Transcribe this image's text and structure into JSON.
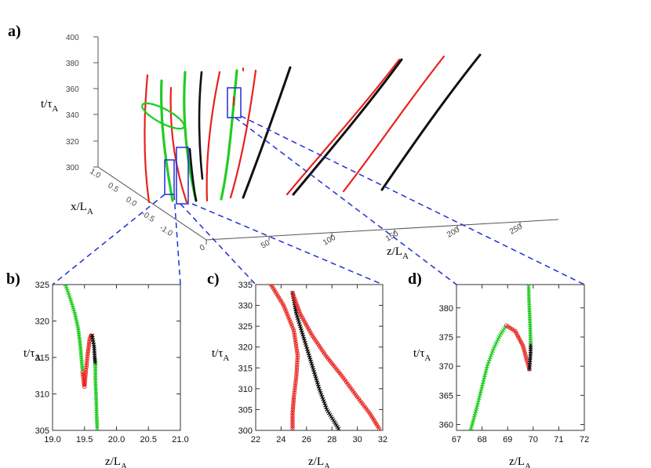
{
  "colors": {
    "red": "#e8211c",
    "green": "#22cc22",
    "black": "#111111",
    "blue": "#1f2fd6",
    "axis": "#555555"
  },
  "panel_labels": {
    "a": "a)",
    "b": "b)",
    "c": "c)",
    "d": "d)"
  },
  "chart_data": [
    {
      "panel": "a",
      "type": "line",
      "xlabel": "z/L",
      "xlabel_sub": "A",
      "ylabel": "t/τ",
      "ylabel_sub": "A",
      "zlabel": "x/L",
      "zlabel_sub": "A",
      "z_ticks": [
        "0",
        "50",
        "100",
        "150",
        "200",
        "250"
      ],
      "t_ticks": [
        "300",
        "320",
        "340",
        "360",
        "380",
        "400"
      ],
      "x_ticks": [
        "1.0",
        "0.5",
        "0.0",
        "-0.5",
        "-1.0"
      ],
      "t_range": [
        300,
        400
      ],
      "z_range": [
        0,
        280
      ],
      "x_range": [
        -1,
        1
      ],
      "grid": false,
      "description_of_series": "red, green and black field-line trajectories in z-t-x space; blue rectangles mark zoom regions for b), c), d)"
    },
    {
      "panel": "b",
      "type": "line",
      "xlabel": "z/L",
      "xlabel_sub": "A",
      "ylabel": "t/τ",
      "ylabel_sub": "A",
      "xlim": [
        19.0,
        21.0
      ],
      "ylim": [
        305,
        325
      ],
      "xticks": [
        "19.0",
        "19.5",
        "20.0",
        "20.5",
        "21.0"
      ],
      "yticks": [
        "305",
        "310",
        "315",
        "320",
        "325"
      ],
      "series": [
        {
          "color": "green",
          "x": [
            19.2,
            19.28,
            19.35,
            19.4,
            19.43,
            19.45,
            19.47
          ],
          "y": [
            325,
            323,
            321,
            319,
            317,
            315,
            313
          ]
        },
        {
          "color": "red",
          "x": [
            19.47,
            19.49,
            19.5,
            19.52,
            19.55,
            19.58,
            19.6,
            19.62
          ],
          "y": [
            313,
            311.5,
            311,
            313,
            315.5,
            317.5,
            318,
            318
          ]
        },
        {
          "color": "black",
          "x": [
            19.62,
            19.65,
            19.66,
            19.67
          ],
          "y": [
            318,
            316.5,
            315,
            314
          ]
        },
        {
          "color": "green",
          "x": [
            19.67,
            19.67,
            19.68,
            19.69,
            19.7
          ],
          "y": [
            314,
            312,
            310,
            307,
            305
          ]
        }
      ]
    },
    {
      "panel": "c",
      "type": "line",
      "xlabel": "z/L",
      "xlabel_sub": "A",
      "ylabel": "t/τ",
      "ylabel_sub": "A",
      "xlim": [
        22,
        32
      ],
      "ylim": [
        300,
        335
      ],
      "xticks": [
        "22",
        "24",
        "26",
        "28",
        "30",
        "32"
      ],
      "yticks": [
        "300",
        "305",
        "310",
        "315",
        "320",
        "325",
        "330",
        "335"
      ],
      "series": [
        {
          "color": "red",
          "x": [
            23.2,
            24.2,
            25.0,
            25.3,
            25.2,
            25.0,
            24.9,
            24.9
          ],
          "y": [
            335,
            330,
            324,
            318,
            313,
            308,
            304,
            300
          ]
        },
        {
          "color": "black",
          "x": [
            24.9,
            25.2,
            25.8,
            26.4,
            27.0,
            27.6,
            28.2,
            28.6
          ],
          "y": [
            333,
            328,
            322,
            316,
            310,
            305,
            302,
            300
          ]
        },
        {
          "color": "red",
          "x": [
            24.9,
            25.5,
            26.4,
            27.5,
            28.8,
            30.0,
            31.0,
            31.8
          ],
          "y": [
            333,
            328,
            323,
            318,
            313,
            308,
            304,
            300
          ]
        }
      ]
    },
    {
      "panel": "d",
      "type": "line",
      "xlabel": "z/L",
      "xlabel_sub": "A",
      "ylabel": "t/τ",
      "ylabel_sub": "A",
      "xlim": [
        67,
        72
      ],
      "ylim": [
        359,
        384
      ],
      "xticks": [
        "67",
        "68",
        "69",
        "70",
        "71",
        "72"
      ],
      "yticks": [
        "360",
        "365",
        "370",
        "375",
        "380"
      ],
      "series": [
        {
          "color": "green",
          "x": [
            67.55,
            67.8,
            68.0,
            68.2,
            68.45,
            68.7,
            68.95
          ],
          "y": [
            359,
            363,
            366.5,
            370,
            373,
            375.3,
            377
          ]
        },
        {
          "color": "red",
          "x": [
            68.95,
            69.3,
            69.6,
            69.75,
            69.85,
            69.85
          ],
          "y": [
            377,
            376,
            373.5,
            371,
            369.5,
            369.5
          ]
        },
        {
          "color": "black",
          "x": [
            69.85,
            69.88,
            69.9,
            69.9
          ],
          "y": [
            369.5,
            371,
            372.5,
            374
          ]
        },
        {
          "color": "green",
          "x": [
            69.9,
            69.88,
            69.85,
            69.83,
            69.82
          ],
          "y": [
            374,
            377,
            380,
            382,
            384
          ]
        }
      ]
    }
  ]
}
